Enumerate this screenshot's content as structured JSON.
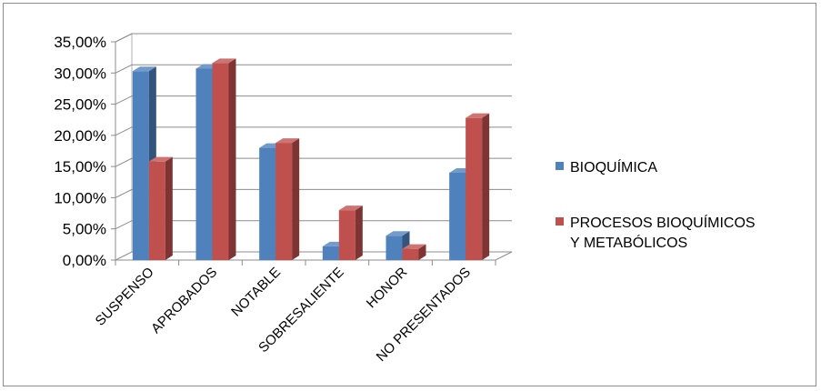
{
  "chart_data": {
    "type": "bar",
    "style": "3d-clustered-column",
    "categories": [
      "SUSPENSO",
      "APROBADOS",
      "NOTABLE",
      "SOBRESALIENTE",
      "HONOR",
      "NO PRESENTADOS"
    ],
    "series": [
      {
        "name": "BIOQUÍMICA",
        "color": "#4f81bd",
        "values": [
          30.3,
          30.7,
          18.0,
          2.2,
          3.9,
          14.0
        ]
      },
      {
        "name": "PROCESOS BIOQUÍMICOS Y METABÓLICOS",
        "name_lines": [
          "PROCESOS BIOQUÍMICOS",
          "Y METABÓLICOS"
        ],
        "color": "#c0504d",
        "values": [
          15.8,
          31.6,
          18.8,
          8.0,
          1.8,
          22.8
        ]
      }
    ],
    "y_ticks": [
      "0,00%",
      "5,00%",
      "10,00%",
      "15,00%",
      "20,00%",
      "25,00%",
      "30,00%",
      "35,00%"
    ],
    "ylim": [
      0,
      35
    ],
    "grid": true,
    "legend_position": "right"
  }
}
